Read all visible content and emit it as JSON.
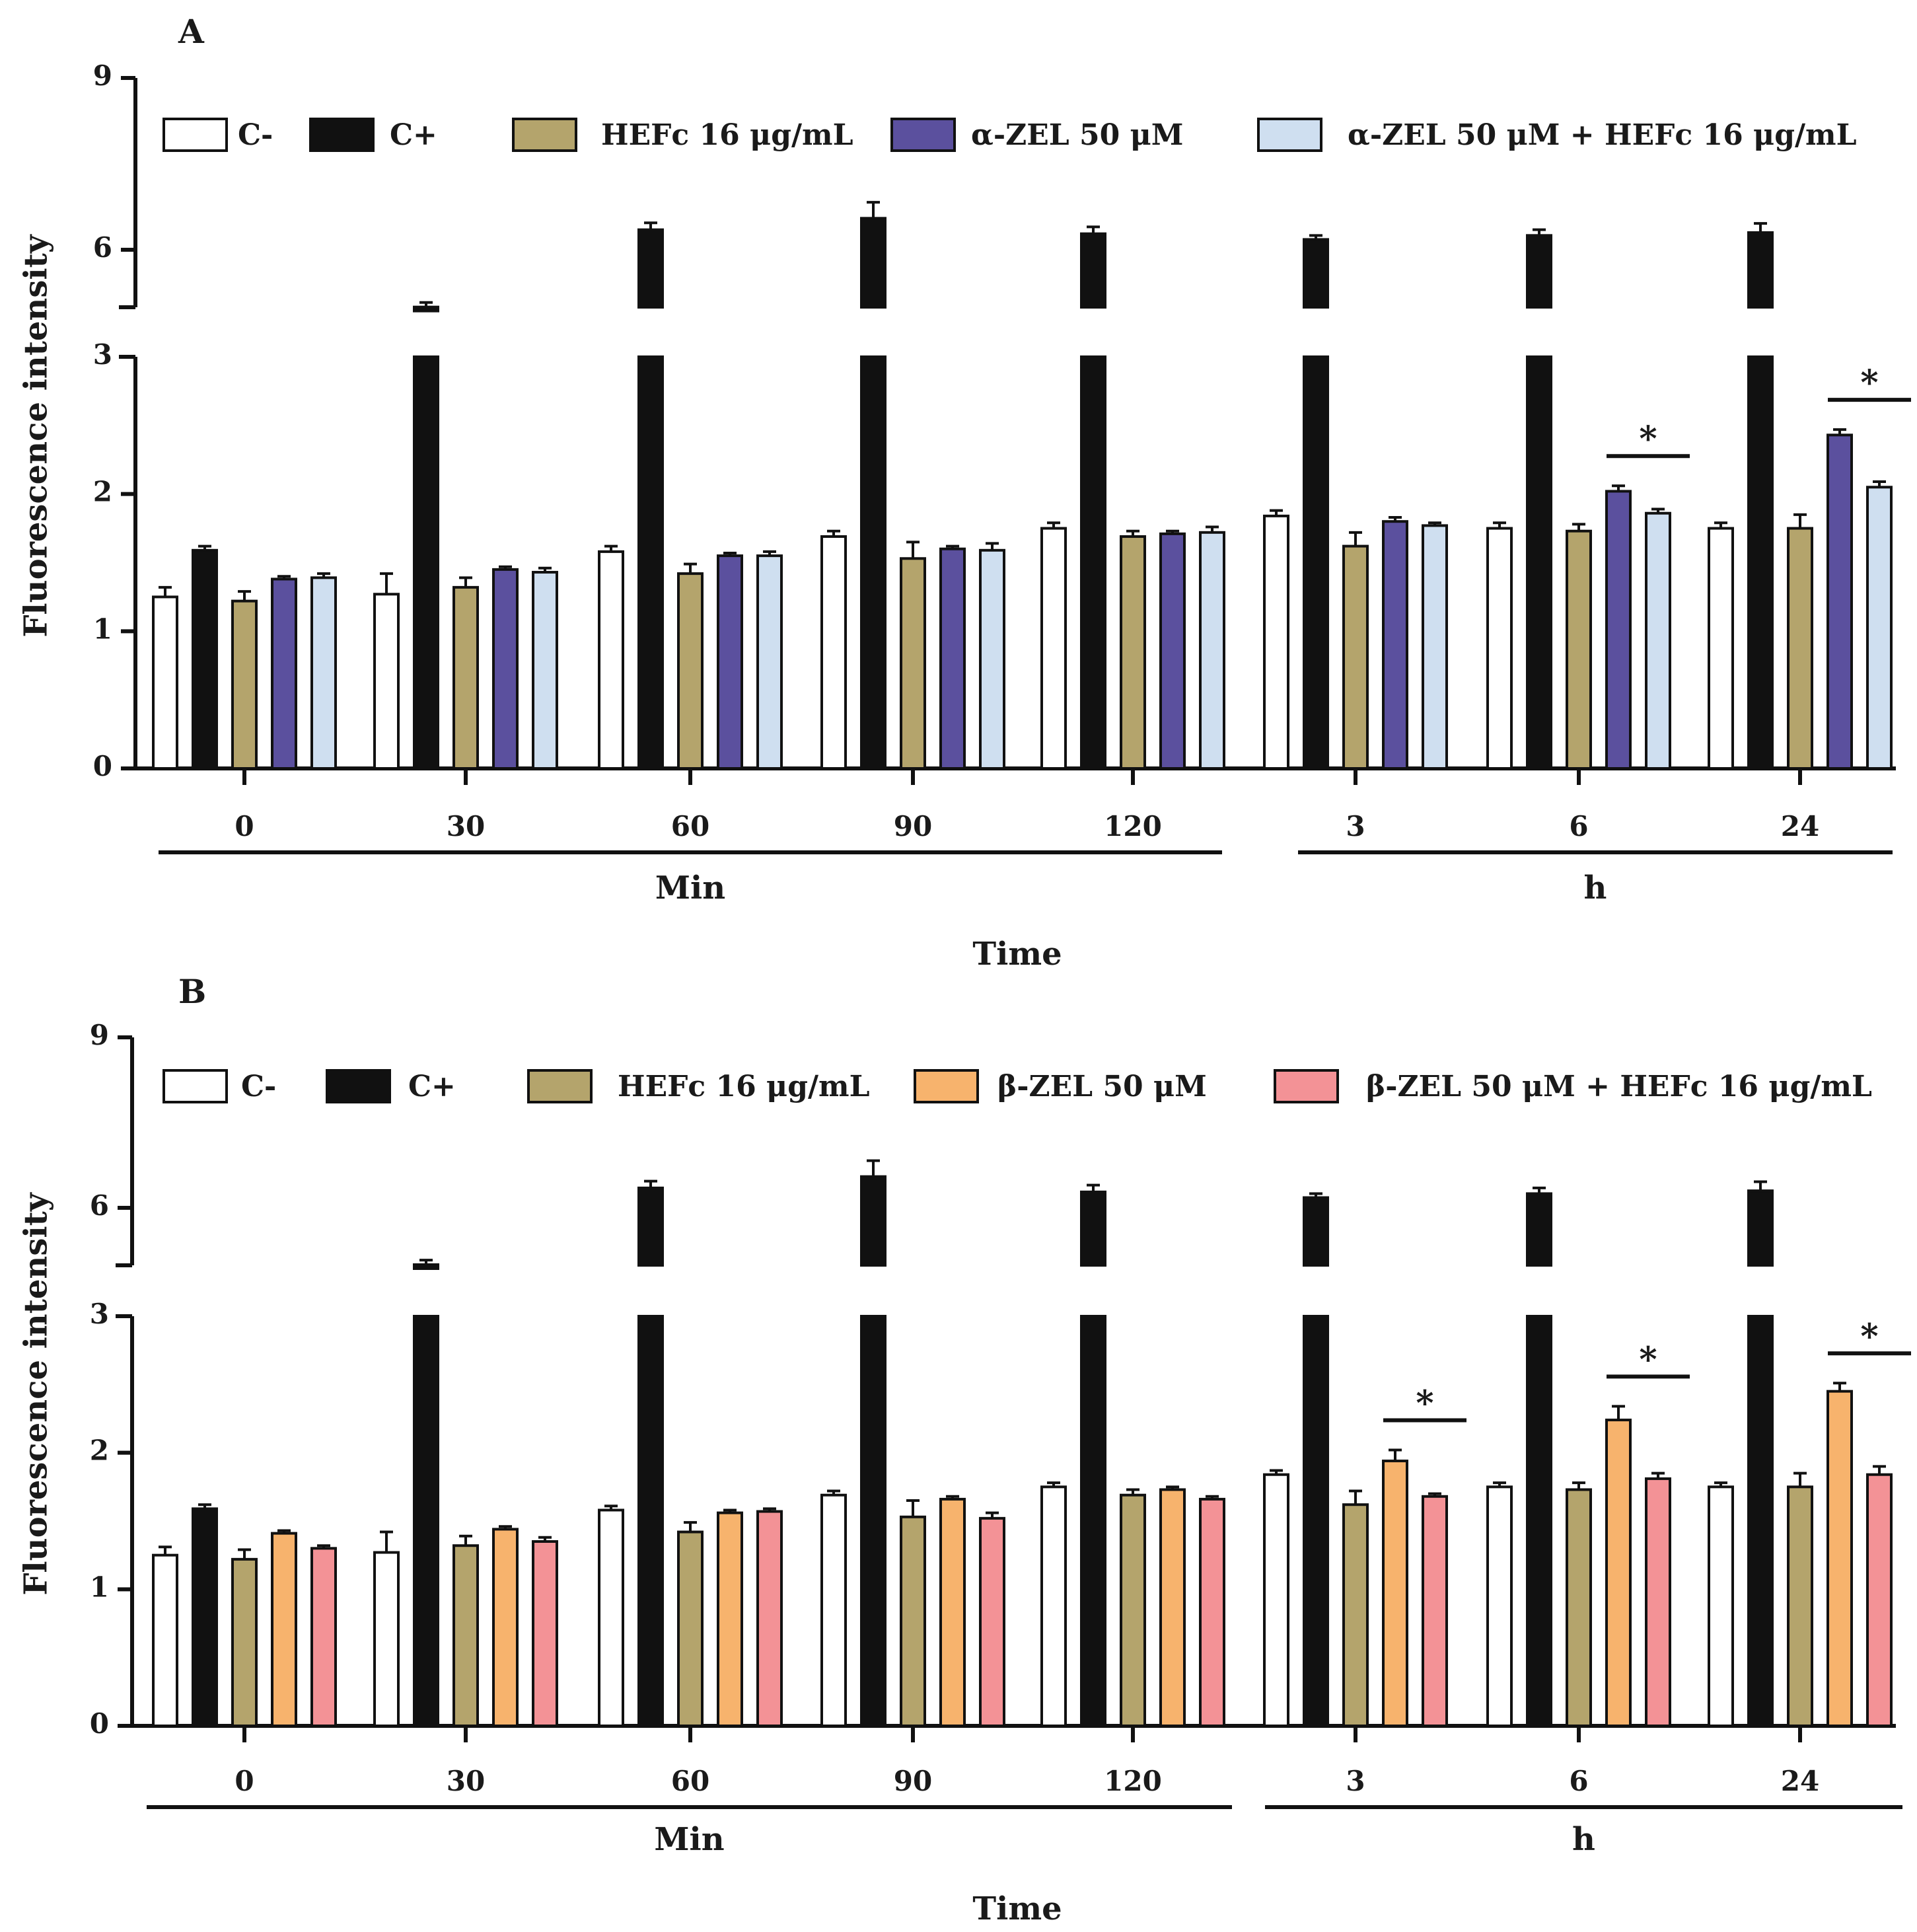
{
  "chart_data": [
    {
      "type": "bar",
      "panel": "A",
      "ylabel": "Fluorescence intensity",
      "xlabel": "Time",
      "ylim_lower": [
        0,
        3
      ],
      "ylim_upper": [
        5,
        9
      ],
      "yticks": [
        "0",
        "1",
        "2",
        "3",
        "6",
        "9"
      ],
      "categories": [
        "0",
        "30",
        "60",
        "90",
        "120",
        "3",
        "6",
        "24"
      ],
      "groups": [
        {
          "label": "Min",
          "from": 0,
          "to": 4
        },
        {
          "label": "h",
          "from": 5,
          "to": 7
        }
      ],
      "series": [
        {
          "name": "C-",
          "color": "#ffffff",
          "values": [
            1.25,
            1.27,
            1.58,
            1.69,
            1.75,
            1.84,
            1.75,
            1.75
          ],
          "errors": [
            0.07,
            0.15,
            0.04,
            0.04,
            0.04,
            0.04,
            0.04,
            0.04
          ]
        },
        {
          "name": "C+",
          "color": "#111111",
          "values": [
            1.59,
            5.0,
            6.35,
            6.55,
            6.28,
            6.18,
            6.25,
            6.3
          ],
          "errors": [
            0.03,
            0.08,
            0.12,
            0.28,
            0.12,
            0.07,
            0.1,
            0.16
          ]
        },
        {
          "name": "HEFc 16 μg/mL",
          "color": "#b4a46c",
          "values": [
            1.22,
            1.32,
            1.42,
            1.53,
            1.69,
            1.62,
            1.73,
            1.75
          ],
          "errors": [
            0.07,
            0.07,
            0.07,
            0.12,
            0.04,
            0.1,
            0.05,
            0.1
          ]
        },
        {
          "name": "α-ZEL 50 μM",
          "color": "#5b509e",
          "values": [
            1.38,
            1.45,
            1.55,
            1.6,
            1.71,
            1.8,
            2.02,
            2.43
          ],
          "errors": [
            0.02,
            0.02,
            0.02,
            0.02,
            0.02,
            0.03,
            0.04,
            0.04
          ]
        },
        {
          "name": "α-ZEL 50 μM + HEFc 16 μg/mL",
          "color": "#cfdff0",
          "values": [
            1.39,
            1.43,
            1.55,
            1.59,
            1.72,
            1.77,
            1.86,
            2.05
          ],
          "errors": [
            0.03,
            0.03,
            0.03,
            0.05,
            0.04,
            0.02,
            0.03,
            0.04
          ]
        }
      ],
      "significance": [
        {
          "category": "6",
          "label": "*",
          "from_series": 3,
          "to_series": 4
        },
        {
          "category": "24",
          "label": "*",
          "from_series": 3,
          "to_series": 4
        }
      ]
    },
    {
      "type": "bar",
      "panel": "B",
      "ylabel": "Fluorescence intensity",
      "xlabel": "Time",
      "ylim_lower": [
        0,
        3
      ],
      "ylim_upper": [
        5,
        9
      ],
      "yticks": [
        "0",
        "1",
        "2",
        "3",
        "6",
        "9"
      ],
      "categories": [
        "0",
        "30",
        "60",
        "90",
        "120",
        "3",
        "6",
        "24"
      ],
      "groups": [
        {
          "label": "Min",
          "from": 0,
          "to": 4
        },
        {
          "label": "h",
          "from": 5,
          "to": 7
        }
      ],
      "series": [
        {
          "name": "C-",
          "color": "#ffffff",
          "values": [
            1.25,
            1.27,
            1.58,
            1.69,
            1.75,
            1.84,
            1.75,
            1.75
          ],
          "errors": [
            0.06,
            0.15,
            0.03,
            0.03,
            0.03,
            0.03,
            0.03,
            0.03
          ]
        },
        {
          "name": "C+",
          "color": "#111111",
          "values": [
            1.59,
            5.0,
            6.35,
            6.55,
            6.28,
            6.18,
            6.25,
            6.3
          ],
          "errors": [
            0.03,
            0.08,
            0.12,
            0.28,
            0.12,
            0.07,
            0.1,
            0.16
          ]
        },
        {
          "name": "HEFc 16 μg/mL",
          "color": "#b4a46c",
          "values": [
            1.22,
            1.32,
            1.42,
            1.53,
            1.69,
            1.62,
            1.73,
            1.75
          ],
          "errors": [
            0.07,
            0.07,
            0.07,
            0.12,
            0.04,
            0.1,
            0.05,
            0.1
          ]
        },
        {
          "name": "β-ZEL 50 μM",
          "color": "#f7b36d",
          "values": [
            1.41,
            1.44,
            1.56,
            1.66,
            1.73,
            1.94,
            2.24,
            2.45
          ],
          "errors": [
            0.02,
            0.02,
            0.02,
            0.02,
            0.02,
            0.08,
            0.1,
            0.06
          ]
        },
        {
          "name": "β-ZEL 50 μM + HEFc 16 μg/mL",
          "color": "#f39296",
          "values": [
            1.3,
            1.35,
            1.57,
            1.52,
            1.66,
            1.68,
            1.81,
            1.84
          ],
          "errors": [
            0.02,
            0.03,
            0.02,
            0.04,
            0.02,
            0.02,
            0.04,
            0.06
          ]
        }
      ],
      "significance": [
        {
          "category": "3",
          "label": "*",
          "from_series": 3,
          "to_series": 4
        },
        {
          "category": "6",
          "label": "*",
          "from_series": 3,
          "to_series": 4
        },
        {
          "category": "24",
          "label": "*",
          "from_series": 3,
          "to_series": 4
        }
      ]
    }
  ]
}
